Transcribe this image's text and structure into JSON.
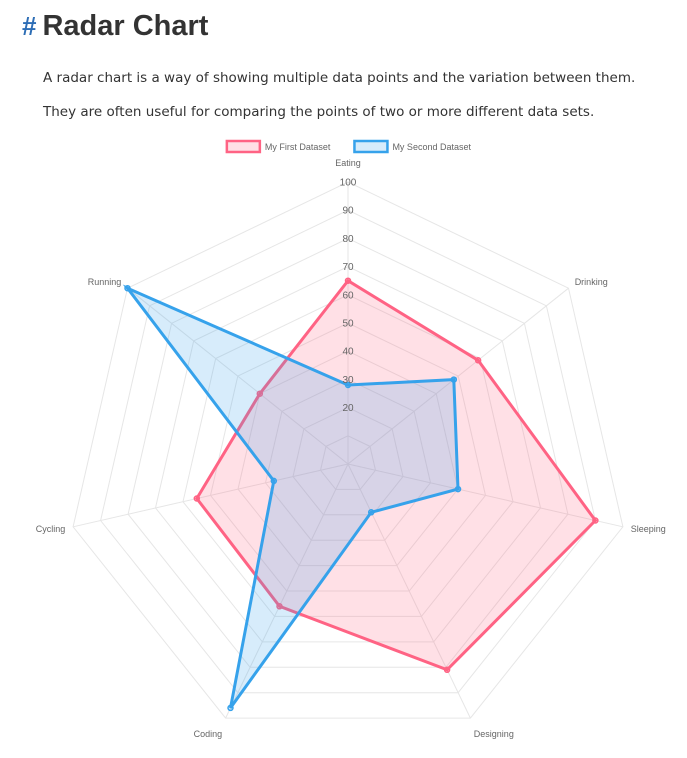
{
  "page": {
    "hash_symbol": "#",
    "title": "Radar Chart",
    "paragraphs": [
      "A radar chart is a way of showing multiple data points and the variation between them.",
      "They are often useful for comparing the points of two or more different data sets."
    ]
  },
  "chart_data": {
    "type": "radar",
    "categories": [
      "Eating",
      "Drinking",
      "Sleeping",
      "Designing",
      "Coding",
      "Cycling",
      "Running"
    ],
    "rticks": [
      20,
      30,
      40,
      50,
      60,
      70,
      80,
      90,
      100
    ],
    "rlim": [
      0,
      100
    ],
    "grid": true,
    "legend_position": "top",
    "series": [
      {
        "name": "My First Dataset",
        "values": [
          65,
          59,
          90,
          81,
          56,
          55,
          40
        ],
        "border_color": "#ff6384",
        "fill_color": "rgba(255,99,132,0.2)"
      },
      {
        "name": "My Second Dataset",
        "values": [
          28,
          48,
          40,
          19,
          96,
          27,
          100
        ],
        "border_color": "#36a2eb",
        "fill_color": "rgba(54,162,235,0.2)"
      }
    ]
  }
}
